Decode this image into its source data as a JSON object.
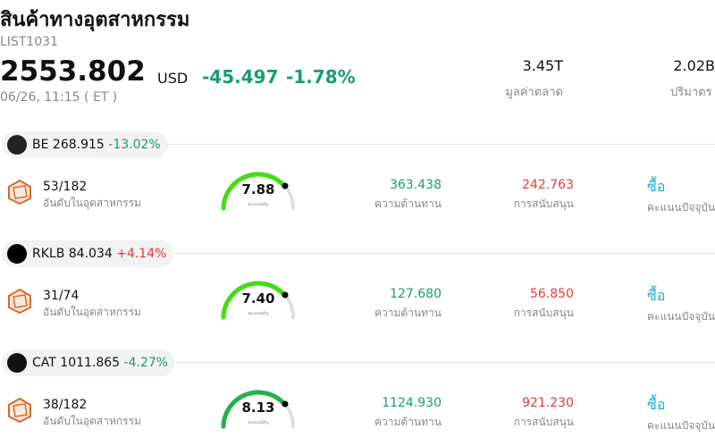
{
  "header": {
    "title": "สินค้าทางอุตสาหกรรม",
    "code": "LIST1031",
    "price": "2553.802",
    "currency": "USD",
    "change": "-45.497",
    "change_pct": "-1.78%",
    "time": "06/26, 11:15 ( ET )",
    "stats": [
      {
        "value": "3.45T",
        "label": "มูลค่าตลาด"
      },
      {
        "value": "2.02B",
        "label": "ปริมาตร"
      }
    ]
  },
  "items": [
    {
      "ticker": "BE",
      "price": "268.915",
      "change": "-13.02%",
      "rank": "53/182",
      "rank_label": "อันดับในอุตสาหกรรม",
      "score": "7.88",
      "score_label": "คะแนนหุ้น",
      "resistance": "363.438",
      "resistance_label": "ความต้านทาน",
      "support": "242.763",
      "support_label": "การสนับสนุน",
      "action": "ซื้อ",
      "action_label": "คะแนนปัจจุบัน"
    },
    {
      "ticker": "RKLB",
      "price": "84.034",
      "change": "+4.14%",
      "rank": "31/74",
      "rank_label": "อันดับในอุตสาหกรรม",
      "score": "7.40",
      "score_label": "คะแนนหุ้น",
      "resistance": "127.680",
      "resistance_label": "ความต้านทาน",
      "support": "56.850",
      "support_label": "การสนับสนุน",
      "action": "ซื้อ",
      "action_label": "คะแนนปัจจุบัน"
    },
    {
      "ticker": "CAT",
      "price": "1011.865",
      "change": "-4.27%",
      "rank": "38/182",
      "rank_label": "อันดับในอุตสาหกรรม",
      "score": "8.13",
      "score_label": "คะแนนหุ้น",
      "resistance": "1124.930",
      "resistance_label": "ความต้านทาน",
      "support": "921.230",
      "support_label": "การสนับสนุน",
      "action": "ซื้อ",
      "action_label": "คะแนนปัจจุบัน"
    }
  ]
}
